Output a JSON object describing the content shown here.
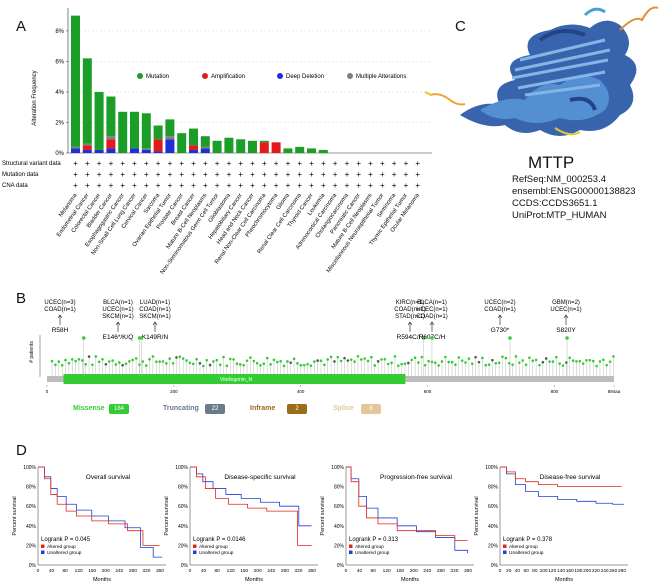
{
  "panels": {
    "a": "A",
    "b": "B",
    "c": "C",
    "d": "D"
  },
  "panel_a": {
    "ylabel": "Alteration Frequency",
    "yticks": [
      "0%",
      "2%",
      "4%",
      "6%",
      "8%"
    ],
    "legend": [
      {
        "label": "Mutation",
        "color": "#1a9e27"
      },
      {
        "label": "Amplification",
        "color": "#e31a1c"
      },
      {
        "label": "Deep Deletion",
        "color": "#1f2ed6"
      },
      {
        "label": "Multiple Alterations",
        "color": "#7f7f7f"
      }
    ],
    "track_labels": [
      "Structural variant data",
      "Mutation data",
      "CNA data"
    ]
  },
  "chart_data": {
    "type": "bar",
    "title": "",
    "xlabel": "",
    "ylabel": "Alteration Frequency",
    "ylim": [
      0,
      9.5
    ],
    "categories": [
      "Melanoma",
      "Endometrial Cancer",
      "Colorectal Cancer",
      "Bladder Cancer",
      "Esophagogastric Cancer",
      "Non-Small Cell Lung Cancer",
      "Cervical Cancer",
      "Sarcoma",
      "Ovarian Epithelial Tumor",
      "Prostate Cancer",
      "Breast Cancer",
      "Mature B-Cell Neoplasms",
      "Non-Seminomatous Germ Cell Tumor",
      "Glioblastoma",
      "Hepatobiliary Cancer",
      "Head and Neck Cancer",
      "Renal Non-Clear Cell Carcinoma",
      "Pheochromocytoma",
      "Glioma",
      "Renal Clear Cell Carcinoma",
      "Thyroid Cancer",
      "Leukemia",
      "Adrenocortical Carcinoma",
      "Cholangiocarcinoma",
      "Pancreatic Cancer",
      "Mature B-Cell Neoplasms",
      "Miscellaneous Neuroepithelial Tumor",
      "Seminoma",
      "Thymic Epithelial Tumor",
      "Ocular Melanoma"
    ],
    "series": [
      {
        "name": "Mutation",
        "values": [
          8.6,
          5.6,
          3.8,
          2.6,
          2.7,
          2.4,
          2.3,
          0.9,
          1.1,
          1.3,
          1.1,
          0.7,
          0.8,
          1.0,
          0.9,
          0.8,
          0.1,
          0.0,
          0.3,
          0.4,
          0.3,
          0.2,
          0,
          0,
          0,
          0,
          0,
          0,
          0,
          0
        ]
      },
      {
        "name": "Amplification",
        "values": [
          0.0,
          0.3,
          0.0,
          0.6,
          0.0,
          0.0,
          0.0,
          0.8,
          0.0,
          0.0,
          0.3,
          0.0,
          0.0,
          0.0,
          0.0,
          0.0,
          0.7,
          0.7,
          0.0,
          0.0,
          0.0,
          0.0,
          0,
          0,
          0,
          0,
          0,
          0,
          0,
          0
        ]
      },
      {
        "name": "Deep Deletion",
        "values": [
          0.3,
          0.2,
          0.2,
          0.3,
          0.0,
          0.3,
          0.2,
          0.1,
          0.9,
          0.0,
          0.2,
          0.3,
          0.0,
          0.0,
          0.0,
          0.0,
          0.0,
          0.0,
          0.0,
          0.0,
          0.0,
          0.0,
          0,
          0,
          0,
          0,
          0,
          0,
          0,
          0
        ]
      },
      {
        "name": "Multiple Alterations",
        "values": [
          0.1,
          0.1,
          0.0,
          0.2,
          0.0,
          0.0,
          0.1,
          0.0,
          0.2,
          0.0,
          0.0,
          0.1,
          0.0,
          0.0,
          0.0,
          0.0,
          0.0,
          0.0,
          0.0,
          0.0,
          0.0,
          0.0,
          0,
          0,
          0,
          0,
          0,
          0,
          0,
          0
        ]
      }
    ]
  },
  "panel_b": {
    "ylabel": "# patients",
    "domain_label": "Vitellogenin_N",
    "axis_ticks": [
      "0",
      "200",
      "400",
      "600",
      "800",
      "894aa"
    ],
    "protein_length": 894,
    "domain_range": [
      26,
      565
    ],
    "annotations": [
      {
        "lines": [
          "UCEC(n=3)",
          "COAD(n=1)"
        ],
        "mutation": "R58H",
        "pos": 58
      },
      {
        "lines": [
          "BLCA(n=1)",
          "UCEC(n=1)",
          "SKCM(n=1)"
        ],
        "mutation": "E146*/K/Q",
        "pos": 146
      },
      {
        "lines": [
          "LUAD(n=1)",
          "COAD(n=1)",
          "SKCM(n=1)"
        ],
        "mutation": "K149R/N",
        "pos": 149
      },
      {
        "lines": [
          "KIRC(n=1)",
          "COAD(n=1)",
          "STAD(n=1)"
        ],
        "mutation": "R594C/H",
        "pos": 594
      },
      {
        "lines": [
          "BLCA(n=1)",
          "UCEC(n=1)",
          "COAD(n=1)"
        ],
        "mutation": "R607C/H",
        "pos": 607
      },
      {
        "lines": [
          "UCEC(n=2)",
          "COAD(n=1)"
        ],
        "mutation": "G730*",
        "pos": 730
      },
      {
        "lines": [
          "GBM(n=2)",
          "UCEC(n=1)"
        ],
        "mutation": "S820Y",
        "pos": 820
      }
    ],
    "legend": [
      {
        "name": "Missense",
        "count": "184",
        "color": "#33cc33"
      },
      {
        "name": "Truncating",
        "count": "22",
        "color": "#6b7b8c"
      },
      {
        "name": "Inframe",
        "count": "2",
        "color": "#9b6b1a"
      },
      {
        "name": "Splice",
        "count": "6",
        "color": "#e3c69a"
      }
    ]
  },
  "panel_c": {
    "gene": "MTTP",
    "refseq": "RefSeq:NM_000253.4",
    "ensembl": "ensembl:ENSG00000138823",
    "ccds": "CCDS:CCDS3651.1",
    "uniprot": "UniProt:MTP_HUMAN"
  },
  "panel_d": {
    "ylabel": "Percent survival",
    "xlabel": "Months",
    "plots": [
      {
        "title": "Overall survival",
        "pvalue": "Logrank P = 0.045",
        "xticks": [
          "0",
          "40",
          "80",
          "120",
          "160",
          "200",
          "240",
          "280",
          "320",
          "360"
        ]
      },
      {
        "title": "Disease-specific survival",
        "pvalue": "Logrank P = 0.0146",
        "xticks": [
          "0",
          "40",
          "80",
          "120",
          "160",
          "200",
          "240",
          "280",
          "320",
          "360"
        ]
      },
      {
        "title": "Progression-free survival",
        "pvalue": "Logrank P = 0.313",
        "xticks": [
          "0",
          "40",
          "80",
          "120",
          "160",
          "200",
          "240",
          "280",
          "320",
          "360"
        ]
      },
      {
        "title": "Disease-free survival",
        "pvalue": "Logrank P = 0.378",
        "xticks": [
          "0",
          "20",
          "40",
          "60",
          "80",
          "100",
          "120",
          "140",
          "160",
          "180",
          "200",
          "220",
          "240",
          "260",
          "280"
        ]
      }
    ],
    "yticks": [
      "0%",
      "20%",
      "40%",
      "60%",
      "80%",
      "100%"
    ],
    "legend": [
      {
        "label": "Altered group",
        "color": "#e3261b"
      },
      {
        "label": "Unaltered group",
        "color": "#1f3fd6"
      }
    ]
  }
}
